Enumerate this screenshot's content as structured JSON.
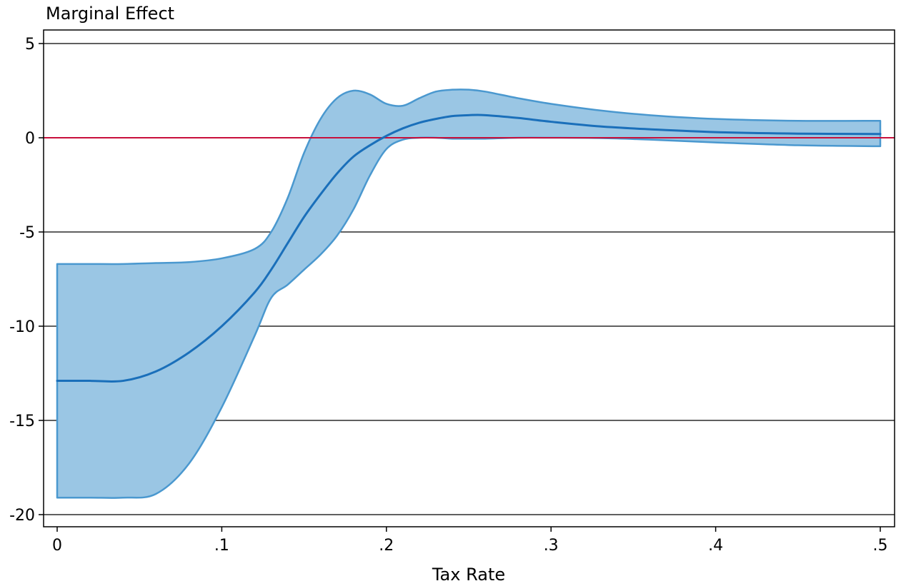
{
  "chart_data": {
    "type": "area",
    "title": "",
    "xlabel": "Tax Rate",
    "ylabel": "Marginal Effect",
    "xlim": [
      0,
      0.5
    ],
    "ylim": [
      -20,
      5
    ],
    "xticks": [
      {
        "value": 0,
        "label": "0"
      },
      {
        "value": 0.1,
        "label": ".1"
      },
      {
        "value": 0.2,
        "label": ".2"
      },
      {
        "value": 0.3,
        "label": ".3"
      },
      {
        "value": 0.4,
        "label": ".4"
      },
      {
        "value": 0.5,
        "label": ".5"
      }
    ],
    "yticks": [
      {
        "value": 5,
        "label": "5"
      },
      {
        "value": 0,
        "label": "0"
      },
      {
        "value": -5,
        "label": "-5"
      },
      {
        "value": -10,
        "label": "-10"
      },
      {
        "value": -15,
        "label": "-15"
      },
      {
        "value": -20,
        "label": "-20"
      }
    ],
    "grid": "horizontal",
    "reference_line": {
      "y": 0,
      "color": "#c8103c"
    },
    "colors": {
      "line": "#1a6fba",
      "band_fill": "#9ac6e4",
      "band_stroke": "#4a98cf",
      "grid": "#000000"
    },
    "x": [
      0,
      0.02,
      0.04,
      0.06,
      0.08,
      0.1,
      0.12,
      0.13,
      0.14,
      0.15,
      0.16,
      0.17,
      0.18,
      0.19,
      0.2,
      0.21,
      0.22,
      0.23,
      0.24,
      0.25,
      0.26,
      0.28,
      0.3,
      0.33,
      0.36,
      0.4,
      0.45,
      0.5
    ],
    "series": [
      {
        "role": "estimate",
        "values": [
          -12.9,
          -12.9,
          -12.9,
          -12.4,
          -11.4,
          -10.0,
          -8.2,
          -7.0,
          -5.6,
          -4.2,
          -3.0,
          -1.9,
          -1.0,
          -0.4,
          0.1,
          0.5,
          0.8,
          1.0,
          1.15,
          1.2,
          1.2,
          1.05,
          0.85,
          0.6,
          0.45,
          0.3,
          0.22,
          0.2
        ]
      },
      {
        "role": "upper_ci",
        "values": [
          -6.7,
          -6.7,
          -6.7,
          -6.65,
          -6.6,
          -6.4,
          -5.9,
          -5.0,
          -3.2,
          -0.8,
          1.0,
          2.1,
          2.5,
          2.3,
          1.8,
          1.7,
          2.1,
          2.45,
          2.55,
          2.55,
          2.45,
          2.1,
          1.8,
          1.45,
          1.2,
          1.0,
          0.9,
          0.9
        ]
      },
      {
        "role": "lower_ci",
        "values": [
          -19.1,
          -19.1,
          -19.1,
          -18.9,
          -17.3,
          -14.3,
          -10.5,
          -8.5,
          -7.8,
          -7.0,
          -6.2,
          -5.2,
          -3.8,
          -2.0,
          -0.6,
          -0.1,
          0.0,
          0.0,
          -0.05,
          -0.05,
          -0.05,
          0.0,
          0.0,
          -0.02,
          -0.1,
          -0.25,
          -0.4,
          -0.45
        ]
      }
    ]
  }
}
